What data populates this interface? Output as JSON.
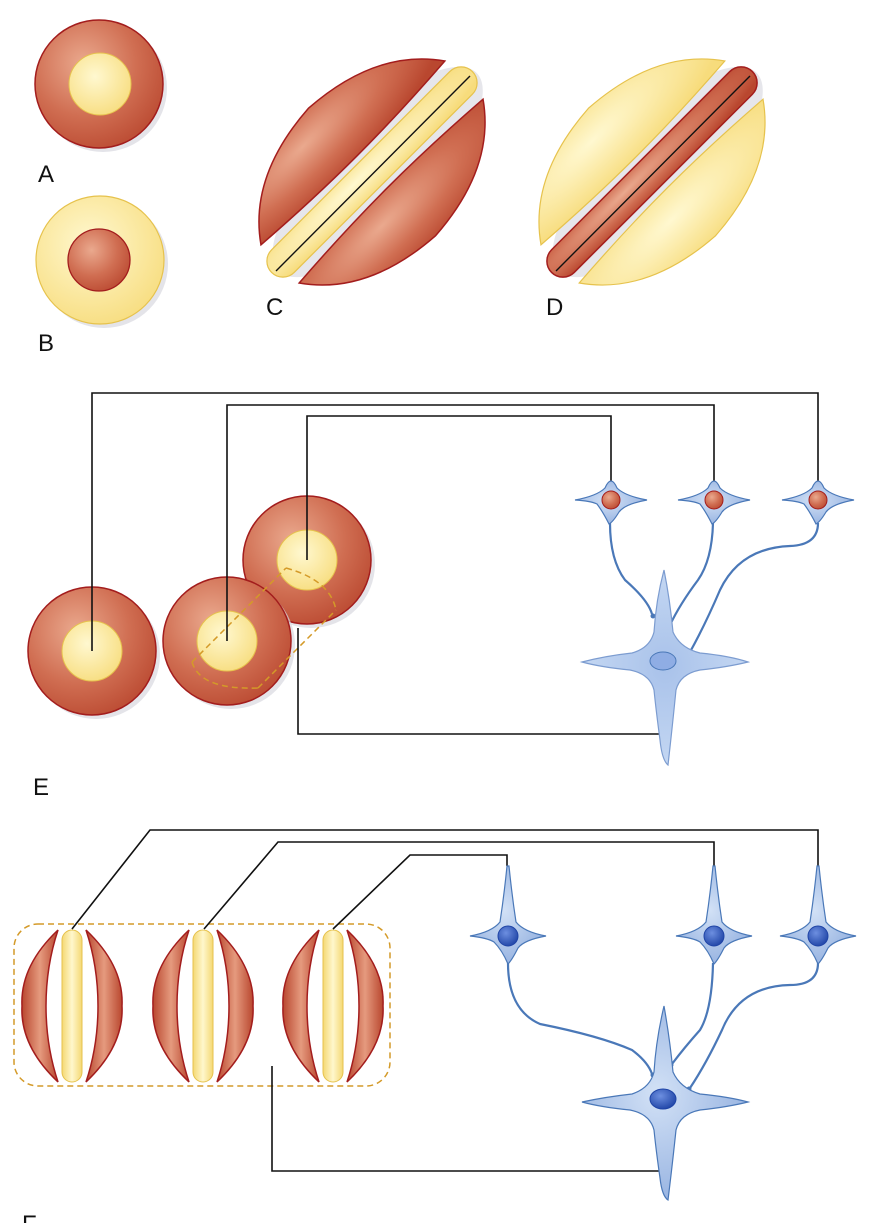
{
  "labels": {
    "a": "A",
    "b": "B",
    "c": "C",
    "d": "D",
    "e": "E",
    "f": "F"
  },
  "colors": {
    "red_fill": "#c65a3f",
    "red_highlight": "#eaa98e",
    "red_stroke": "#a31d1d",
    "yellow_fill": "#fbe792",
    "yellow_highlight": "#fff8d0",
    "yellow_stroke": "#e6c24c",
    "neuron_fill": "#88a8dc",
    "neuron_light": "#c9dbf4",
    "neuron_stroke": "#4a78b8",
    "neuron_nucleus": "#2d55b8",
    "wire": "#111111",
    "dashed_outline": "#d49a28"
  }
}
